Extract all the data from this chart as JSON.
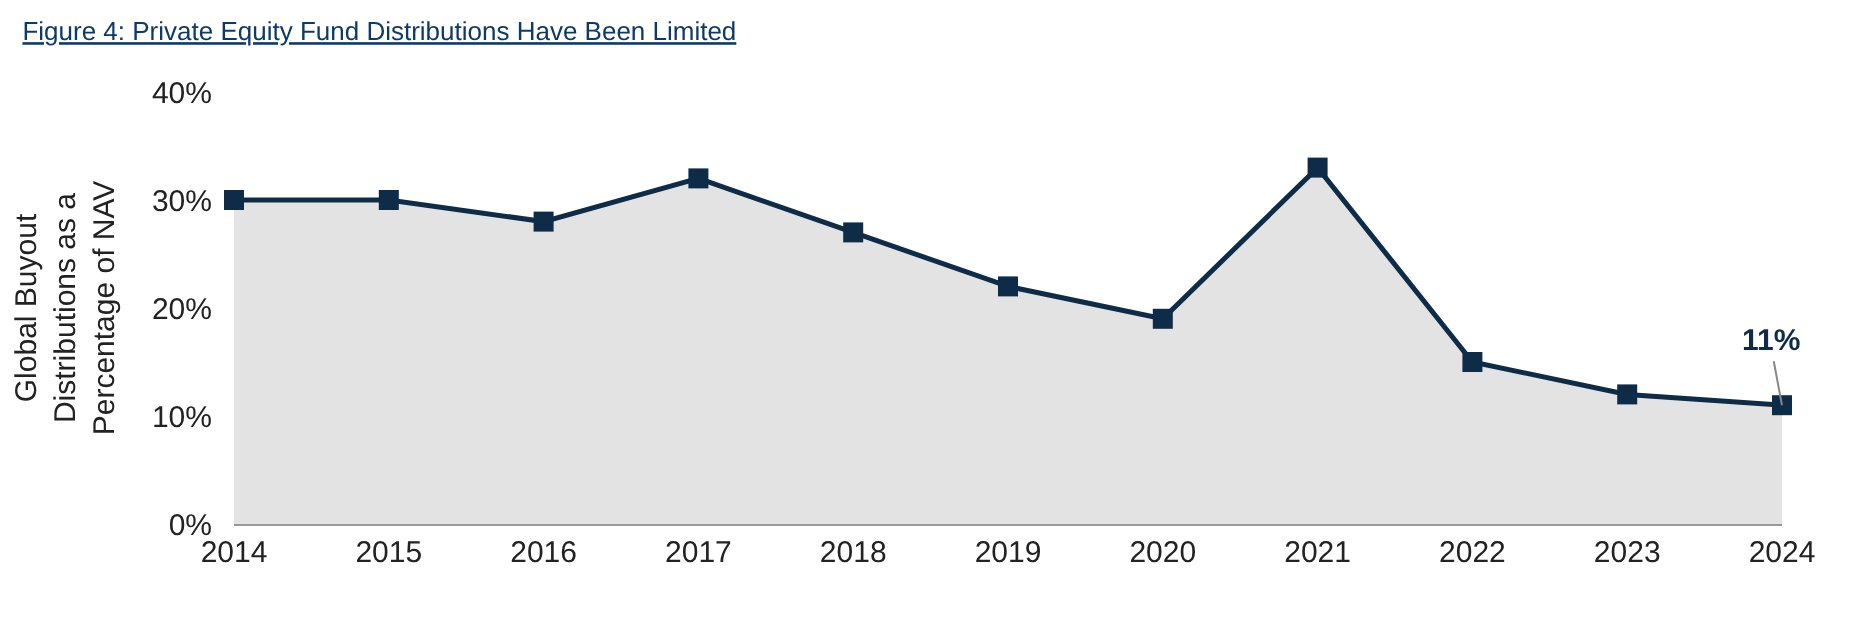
{
  "chart_data": {
    "type": "area",
    "title": "Figure 4: Private Equity Fund Distributions Have Been Limited",
    "ylabel": "Global Buyout\nDistributions as a\nPercentage of NAV",
    "x": [
      2014,
      2015,
      2016,
      2017,
      2018,
      2019,
      2020,
      2021,
      2022,
      2023,
      2024
    ],
    "xlim": [
      2014,
      2024
    ],
    "xticks": [
      2014,
      2015,
      2016,
      2017,
      2018,
      2019,
      2020,
      2021,
      2022,
      2023,
      2024
    ],
    "ylim": [
      0,
      40
    ],
    "yticks": [
      {
        "value": 0,
        "label": "0%"
      },
      {
        "value": 10,
        "label": "10%"
      },
      {
        "value": 20,
        "label": "20%"
      },
      {
        "value": 30,
        "label": "30%"
      },
      {
        "value": 40,
        "label": "40%"
      }
    ],
    "series": [
      {
        "color": "#0e2c48",
        "values": [
          30,
          30,
          28,
          32,
          27,
          22,
          19,
          33,
          15,
          12,
          11
        ],
        "value_labels": [
          null,
          null,
          null,
          null,
          null,
          null,
          null,
          null,
          null,
          null,
          "11%"
        ]
      }
    ],
    "marker": "square",
    "line_style": "solid",
    "legend": false
  }
}
